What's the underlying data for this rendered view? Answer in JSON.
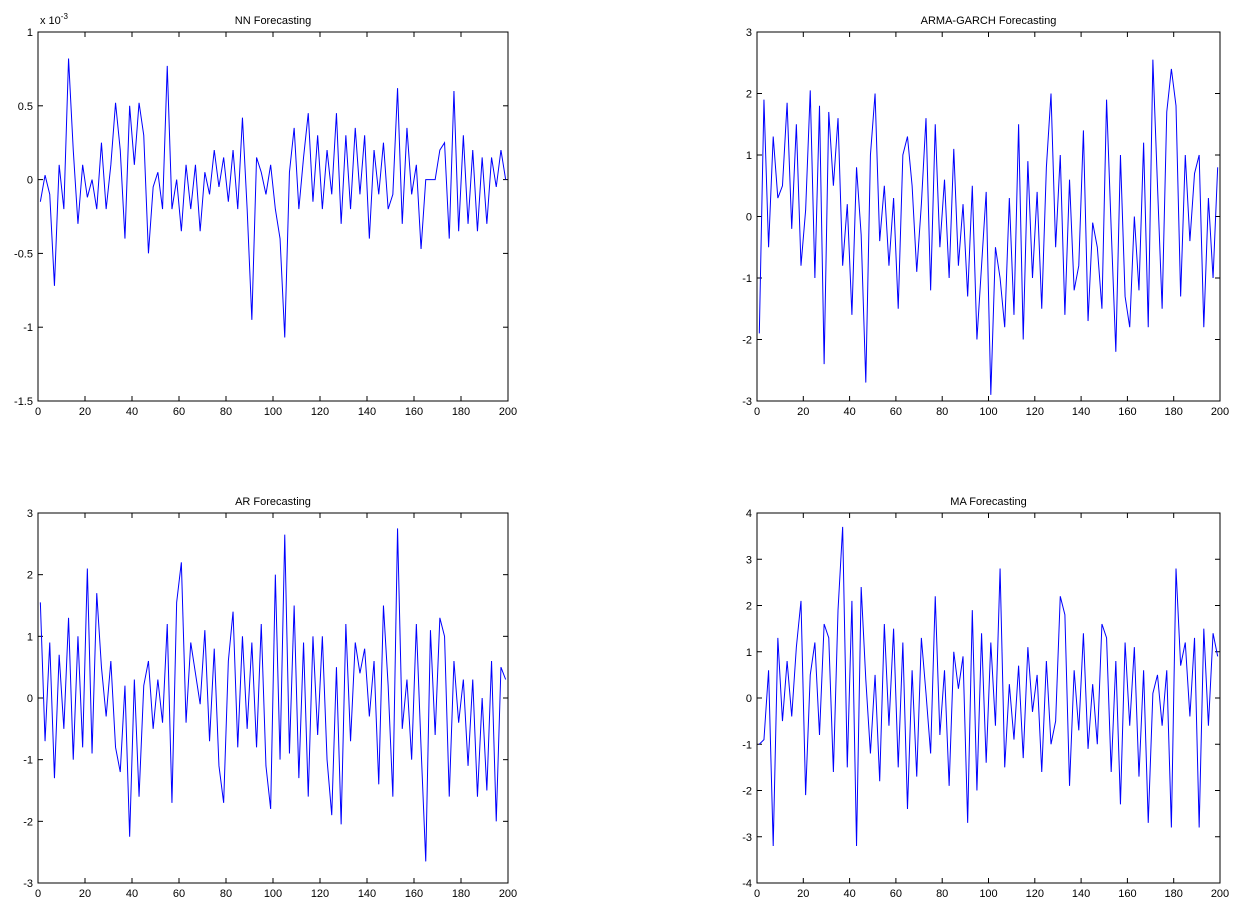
{
  "chart_data": [
    {
      "type": "line",
      "title": "NN Forecasting",
      "color": "#0000ff",
      "y_exponent": {
        "base": "x 10",
        "power": "-3"
      },
      "xlim": [
        0,
        200
      ],
      "xticks": [
        0,
        20,
        40,
        60,
        80,
        100,
        120,
        140,
        160,
        180,
        200
      ],
      "ylim": [
        -1.5,
        1
      ],
      "yticks": [
        -1.5,
        -1,
        -0.5,
        0,
        0.5,
        1
      ],
      "x": [
        1,
        3,
        5,
        7,
        9,
        11,
        13,
        15,
        17,
        19,
        21,
        23,
        25,
        27,
        29,
        31,
        33,
        35,
        37,
        39,
        41,
        43,
        45,
        47,
        49,
        51,
        53,
        55,
        57,
        59,
        61,
        63,
        65,
        67,
        69,
        71,
        73,
        75,
        77,
        79,
        81,
        83,
        85,
        87,
        89,
        91,
        93,
        95,
        97,
        99,
        101,
        103,
        105,
        107,
        109,
        111,
        113,
        115,
        117,
        119,
        121,
        123,
        125,
        127,
        129,
        131,
        133,
        135,
        137,
        139,
        141,
        143,
        145,
        147,
        149,
        151,
        153,
        155,
        157,
        159,
        161,
        163,
        165,
        167,
        169,
        171,
        173,
        175,
        177,
        179,
        181,
        183,
        185,
        187,
        189,
        191,
        193,
        195,
        197,
        199
      ],
      "values": [
        -0.15,
        0.03,
        -0.1,
        -0.72,
        0.1,
        -0.2,
        0.82,
        0.2,
        -0.3,
        0.1,
        -0.12,
        0.0,
        -0.2,
        0.25,
        -0.2,
        0.1,
        0.52,
        0.2,
        -0.4,
        0.5,
        0.1,
        0.52,
        0.3,
        -0.5,
        -0.05,
        0.05,
        -0.2,
        0.77,
        -0.2,
        0.0,
        -0.35,
        0.1,
        -0.2,
        0.1,
        -0.35,
        0.05,
        -0.1,
        0.2,
        -0.05,
        0.15,
        -0.15,
        0.2,
        -0.2,
        0.42,
        -0.2,
        -0.95,
        0.15,
        0.05,
        -0.1,
        0.1,
        -0.2,
        -0.4,
        -1.07,
        0.05,
        0.35,
        -0.2,
        0.15,
        0.45,
        -0.15,
        0.3,
        -0.2,
        0.2,
        -0.1,
        0.45,
        -0.3,
        0.3,
        -0.2,
        0.35,
        -0.1,
        0.3,
        -0.4,
        0.2,
        -0.1,
        0.25,
        -0.2,
        -0.1,
        0.62,
        -0.3,
        0.35,
        -0.1,
        0.1,
        -0.47,
        0.0,
        0.0,
        0.0,
        0.2,
        0.25,
        -0.4,
        0.6,
        -0.35,
        0.3,
        -0.3,
        0.2,
        -0.35,
        0.15,
        -0.3,
        0.15,
        -0.05,
        0.2,
        0.0
      ]
    },
    {
      "type": "line",
      "title": "ARMA-GARCH Forecasting",
      "color": "#0000ff",
      "xlim": [
        0,
        200
      ],
      "xticks": [
        0,
        20,
        40,
        60,
        80,
        100,
        120,
        140,
        160,
        180,
        200
      ],
      "ylim": [
        -3,
        3
      ],
      "yticks": [
        -3,
        -2,
        -1,
        0,
        1,
        2,
        3
      ],
      "x": [
        1,
        3,
        5,
        7,
        9,
        11,
        13,
        15,
        17,
        19,
        21,
        23,
        25,
        27,
        29,
        31,
        33,
        35,
        37,
        39,
        41,
        43,
        45,
        47,
        49,
        51,
        53,
        55,
        57,
        59,
        61,
        63,
        65,
        67,
        69,
        71,
        73,
        75,
        77,
        79,
        81,
        83,
        85,
        87,
        89,
        91,
        93,
        95,
        97,
        99,
        101,
        103,
        105,
        107,
        109,
        111,
        113,
        115,
        117,
        119,
        121,
        123,
        125,
        127,
        129,
        131,
        133,
        135,
        137,
        139,
        141,
        143,
        145,
        147,
        149,
        151,
        153,
        155,
        157,
        159,
        161,
        163,
        165,
        167,
        169,
        171,
        173,
        175,
        177,
        179,
        181,
        183,
        185,
        187,
        189,
        191,
        193,
        195,
        197,
        199
      ],
      "values": [
        -1.9,
        1.9,
        -0.5,
        1.3,
        0.3,
        0.5,
        1.85,
        -0.2,
        1.5,
        -0.8,
        0.1,
        2.05,
        -1.0,
        1.8,
        -2.4,
        1.7,
        0.5,
        1.6,
        -0.8,
        0.2,
        -1.6,
        0.8,
        -0.3,
        -2.7,
        1.0,
        2.0,
        -0.4,
        0.5,
        -0.8,
        0.3,
        -1.5,
        1.0,
        1.3,
        0.5,
        -0.9,
        0.2,
        1.6,
        -1.2,
        1.5,
        -0.5,
        0.6,
        -1.0,
        1.1,
        -0.8,
        0.2,
        -1.3,
        0.5,
        -2.0,
        -0.8,
        0.4,
        -2.9,
        -0.5,
        -1.0,
        -1.8,
        0.3,
        -1.6,
        1.5,
        -2.0,
        0.9,
        -1.0,
        0.4,
        -1.5,
        0.8,
        2.0,
        -0.5,
        1.0,
        -1.6,
        0.6,
        -1.2,
        -0.8,
        1.4,
        -1.7,
        -0.1,
        -0.5,
        -1.5,
        1.9,
        -0.2,
        -2.2,
        1.0,
        -1.3,
        -1.8,
        0.0,
        -1.2,
        1.2,
        -1.8,
        2.55,
        0.5,
        -1.5,
        1.7,
        2.4,
        1.8,
        -1.3,
        1.0,
        -0.4,
        0.7,
        1.0,
        -1.8,
        0.3,
        -1.0,
        0.8
      ]
    },
    {
      "type": "line",
      "title": "AR Forecasting",
      "color": "#0000ff",
      "xlim": [
        0,
        200
      ],
      "xticks": [
        0,
        20,
        40,
        60,
        80,
        100,
        120,
        140,
        160,
        180,
        200
      ],
      "ylim": [
        -3,
        3
      ],
      "yticks": [
        -3,
        -2,
        -1,
        0,
        1,
        2,
        3
      ],
      "x": [
        1,
        3,
        5,
        7,
        9,
        11,
        13,
        15,
        17,
        19,
        21,
        23,
        25,
        27,
        29,
        31,
        33,
        35,
        37,
        39,
        41,
        43,
        45,
        47,
        49,
        51,
        53,
        55,
        57,
        59,
        61,
        63,
        65,
        67,
        69,
        71,
        73,
        75,
        77,
        79,
        81,
        83,
        85,
        87,
        89,
        91,
        93,
        95,
        97,
        99,
        101,
        103,
        105,
        107,
        109,
        111,
        113,
        115,
        117,
        119,
        121,
        123,
        125,
        127,
        129,
        131,
        133,
        135,
        137,
        139,
        141,
        143,
        145,
        147,
        149,
        151,
        153,
        155,
        157,
        159,
        161,
        163,
        165,
        167,
        169,
        171,
        173,
        175,
        177,
        179,
        181,
        183,
        185,
        187,
        189,
        191,
        193,
        195,
        197,
        199
      ],
      "values": [
        1.55,
        -0.7,
        0.9,
        -1.3,
        0.7,
        -0.5,
        1.3,
        -1.0,
        1.0,
        -0.8,
        2.1,
        -0.9,
        1.7,
        0.5,
        -0.3,
        0.6,
        -0.8,
        -1.2,
        0.2,
        -2.25,
        0.3,
        -1.6,
        0.2,
        0.6,
        -0.5,
        0.3,
        -0.4,
        1.2,
        -1.7,
        1.55,
        2.2,
        -0.4,
        0.9,
        0.4,
        -0.1,
        1.1,
        -0.7,
        0.8,
        -1.1,
        -1.7,
        0.6,
        1.4,
        -0.8,
        1.0,
        -0.5,
        0.9,
        -0.8,
        1.2,
        -1.1,
        -1.8,
        2.0,
        -1.0,
        2.65,
        -0.9,
        1.5,
        -1.3,
        0.9,
        -1.6,
        1.0,
        -0.6,
        1.0,
        -1.0,
        -1.9,
        0.5,
        -2.05,
        1.2,
        -0.7,
        0.9,
        0.4,
        0.8,
        -0.3,
        0.6,
        -1.4,
        1.5,
        0.2,
        -1.6,
        2.75,
        -0.5,
        0.3,
        -1.0,
        1.2,
        -0.8,
        -2.65,
        1.1,
        -0.6,
        1.3,
        1.0,
        -1.6,
        0.6,
        -0.4,
        0.3,
        -1.1,
        0.3,
        -1.6,
        0.0,
        -1.5,
        0.6,
        -2.0,
        0.5,
        0.3
      ]
    },
    {
      "type": "line",
      "title": "MA Forecasting",
      "color": "#0000ff",
      "xlim": [
        0,
        200
      ],
      "xticks": [
        0,
        20,
        40,
        60,
        80,
        100,
        120,
        140,
        160,
        180,
        200
      ],
      "ylim": [
        -4,
        4
      ],
      "yticks": [
        -4,
        -3,
        -2,
        -1,
        0,
        1,
        2,
        3,
        4
      ],
      "x": [
        1,
        3,
        5,
        7,
        9,
        11,
        13,
        15,
        17,
        19,
        21,
        23,
        25,
        27,
        29,
        31,
        33,
        35,
        37,
        39,
        41,
        43,
        45,
        47,
        49,
        51,
        53,
        55,
        57,
        59,
        61,
        63,
        65,
        67,
        69,
        71,
        73,
        75,
        77,
        79,
        81,
        83,
        85,
        87,
        89,
        91,
        93,
        95,
        97,
        99,
        101,
        103,
        105,
        107,
        109,
        111,
        113,
        115,
        117,
        119,
        121,
        123,
        125,
        127,
        129,
        131,
        133,
        135,
        137,
        139,
        141,
        143,
        145,
        147,
        149,
        151,
        153,
        155,
        157,
        159,
        161,
        163,
        165,
        167,
        169,
        171,
        173,
        175,
        177,
        179,
        181,
        183,
        185,
        187,
        189,
        191,
        193,
        195,
        197,
        199
      ],
      "values": [
        -1.0,
        -0.9,
        0.6,
        -3.2,
        1.3,
        -0.5,
        0.8,
        -0.4,
        1.1,
        2.1,
        -2.1,
        0.5,
        1.2,
        -0.8,
        1.6,
        1.3,
        -1.6,
        1.9,
        3.7,
        -1.5,
        2.1,
        -3.2,
        2.4,
        0.4,
        -1.2,
        0.5,
        -1.8,
        1.6,
        -0.6,
        1.5,
        -1.5,
        1.2,
        -2.4,
        0.6,
        -1.7,
        1.3,
        0.1,
        -1.2,
        2.2,
        -0.8,
        0.6,
        -1.9,
        1.0,
        0.2,
        0.9,
        -2.7,
        1.9,
        -2.0,
        1.4,
        -1.4,
        1.2,
        -0.6,
        2.8,
        -1.5,
        0.3,
        -0.9,
        0.7,
        -1.3,
        1.1,
        -0.3,
        0.5,
        -1.6,
        0.8,
        -1.0,
        -0.5,
        2.2,
        1.8,
        -1.9,
        0.6,
        -0.7,
        1.4,
        -1.1,
        0.3,
        -1.0,
        1.6,
        1.3,
        -1.6,
        0.8,
        -2.3,
        1.2,
        -0.6,
        1.1,
        -1.7,
        0.6,
        -2.7,
        0.1,
        0.5,
        -0.6,
        0.6,
        -2.8,
        2.8,
        0.7,
        1.2,
        -0.4,
        1.3,
        -2.8,
        1.5,
        -0.6,
        1.4,
        0.9
      ]
    }
  ]
}
